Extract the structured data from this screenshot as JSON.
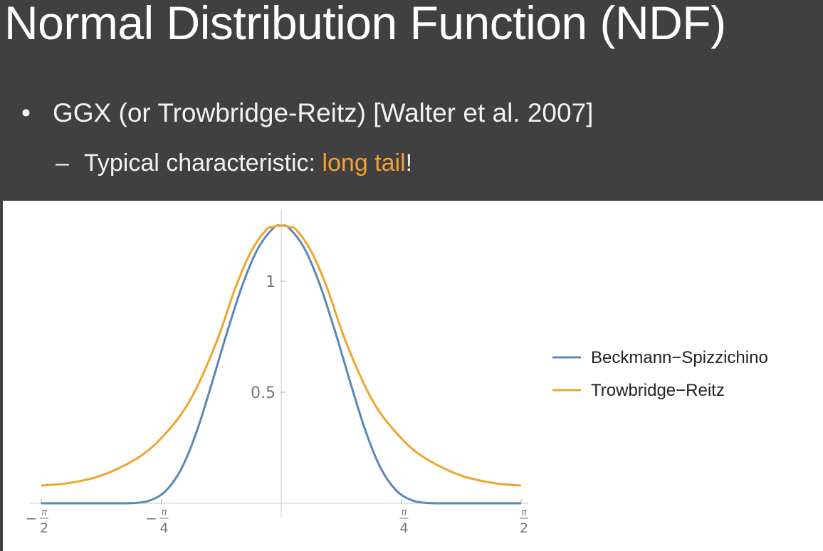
{
  "slide": {
    "title": "Normal Distribution Function (NDF)",
    "bullet": "GGX (or Trowbridge-Reitz) [Walter et al. 2007]",
    "sub_bullet_prefix": "Typical characteristic: ",
    "sub_bullet_highlight": "long tail",
    "sub_bullet_suffix": "!",
    "highlight_color": "#f5a033"
  },
  "chart_data": {
    "type": "line",
    "title": "",
    "xlabel": "",
    "ylabel": "",
    "xlim": [
      -1.5708,
      1.5708
    ],
    "ylim": [
      0,
      1.25
    ],
    "x_tick_labels": [
      {
        "sign": "−",
        "num": "π",
        "den": "2"
      },
      {
        "sign": "−",
        "num": "π",
        "den": "4"
      },
      {
        "sign": "",
        "num": "π",
        "den": "4"
      },
      {
        "sign": "",
        "num": "π",
        "den": "2"
      }
    ],
    "y_tick_labels": [
      "0.5",
      "1"
    ],
    "legend_position": "right",
    "series": [
      {
        "name": "Beckmann−Spizzichino",
        "color": "#5b86b8",
        "x": [
          -1.5708,
          -1.3,
          -1.1,
          -0.95,
          -0.85,
          -0.75,
          -0.65,
          -0.55,
          -0.45,
          -0.35,
          -0.25,
          -0.15,
          -0.05,
          0,
          0.05,
          0.15,
          0.25,
          0.35,
          0.45,
          0.55,
          0.65,
          0.75,
          0.85,
          0.95,
          1.1,
          1.3,
          1.5708
        ],
        "y": [
          0.0,
          0.0,
          0.0,
          0.002,
          0.015,
          0.06,
          0.16,
          0.33,
          0.55,
          0.78,
          0.99,
          1.15,
          1.24,
          1.25,
          1.24,
          1.15,
          0.99,
          0.78,
          0.55,
          0.33,
          0.16,
          0.06,
          0.015,
          0.002,
          0.0,
          0.0,
          0.0
        ]
      },
      {
        "name": "Trowbridge−Reitz",
        "color": "#f0a52a",
        "x": [
          -1.5708,
          -1.4,
          -1.2,
          -1.0,
          -0.85,
          -0.7,
          -0.6,
          -0.5,
          -0.4,
          -0.3,
          -0.2,
          -0.1,
          -0.05,
          0,
          0.05,
          0.1,
          0.2,
          0.3,
          0.4,
          0.5,
          0.6,
          0.7,
          0.85,
          1.0,
          1.2,
          1.4,
          1.5708
        ],
        "y": [
          0.08,
          0.09,
          0.12,
          0.18,
          0.25,
          0.36,
          0.46,
          0.6,
          0.77,
          0.97,
          1.13,
          1.23,
          1.245,
          1.25,
          1.245,
          1.23,
          1.13,
          0.97,
          0.77,
          0.6,
          0.46,
          0.36,
          0.25,
          0.18,
          0.12,
          0.09,
          0.08
        ]
      }
    ]
  }
}
